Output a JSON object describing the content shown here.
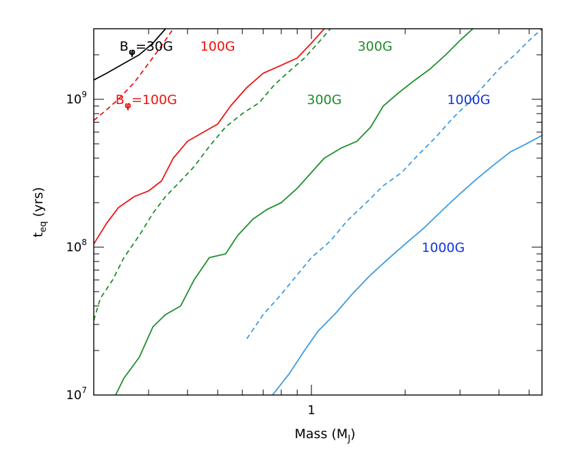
{
  "chart_data": {
    "type": "line",
    "xlabel": "Mass (M",
    "xlabel_sub": "J",
    "xlabel_end": ")",
    "ylabel": "t",
    "ylabel_sub": "eq",
    "ylabel_end": " (yrs)",
    "x_scale": "log",
    "y_scale": "log",
    "xlim": [
      0.2,
      5.5
    ],
    "ylim": [
      10000000.0,
      3000000000.0
    ],
    "x_ticks": [
      {
        "value": 1,
        "label": "1"
      }
    ],
    "y_ticks": [
      {
        "value": 10000000.0,
        "label": "10",
        "exp": "7"
      },
      {
        "value": 100000000.0,
        "label": "10",
        "exp": "8"
      },
      {
        "value": 1000000000.0,
        "label": "10",
        "exp": "9"
      }
    ],
    "grid": false,
    "series": [
      {
        "color": "#000000",
        "dash": false,
        "points": [
          [
            0.2,
            1350000000.0
          ],
          [
            0.22,
            1500000000.0
          ],
          [
            0.25,
            1750000000.0
          ],
          [
            0.28,
            2000000000.0
          ],
          [
            0.31,
            2400000000.0
          ],
          [
            0.34,
            3000000000.0
          ]
        ]
      },
      {
        "color": "#ee1111",
        "dash": true,
        "points": [
          [
            0.2,
            720000000.0
          ],
          [
            0.22,
            850000000.0
          ],
          [
            0.24,
            1000000000.0
          ],
          [
            0.27,
            1300000000.0
          ],
          [
            0.3,
            1750000000.0
          ],
          [
            0.33,
            2300000000.0
          ],
          [
            0.36,
            3000000000.0
          ]
        ]
      },
      {
        "color": "#ee1111",
        "dash": false,
        "points": [
          [
            0.2,
            105000000.0
          ],
          [
            0.22,
            145000000.0
          ],
          [
            0.24,
            185000000.0
          ],
          [
            0.27,
            220000000.0
          ],
          [
            0.3,
            240000000.0
          ],
          [
            0.33,
            280000000.0
          ],
          [
            0.36,
            400000000.0
          ],
          [
            0.4,
            520000000.0
          ],
          [
            0.45,
            600000000.0
          ],
          [
            0.5,
            680000000.0
          ],
          [
            0.55,
            900000000.0
          ],
          [
            0.62,
            1200000000.0
          ],
          [
            0.7,
            1500000000.0
          ],
          [
            0.8,
            1700000000.0
          ],
          [
            0.9,
            1900000000.0
          ],
          [
            1.0,
            2400000000.0
          ],
          [
            1.1,
            3000000000.0
          ]
        ]
      },
      {
        "color": "#1e8c2a",
        "dash": true,
        "points": [
          [
            0.2,
            32000000.0
          ],
          [
            0.21,
            45000000.0
          ],
          [
            0.23,
            60000000.0
          ],
          [
            0.25,
            85000000.0
          ],
          [
            0.28,
            120000000.0
          ],
          [
            0.31,
            170000000.0
          ],
          [
            0.34,
            220000000.0
          ],
          [
            0.38,
            280000000.0
          ],
          [
            0.42,
            350000000.0
          ],
          [
            0.47,
            480000000.0
          ],
          [
            0.53,
            650000000.0
          ],
          [
            0.6,
            800000000.0
          ],
          [
            0.68,
            950000000.0
          ],
          [
            0.76,
            1250000000.0
          ],
          [
            0.85,
            1550000000.0
          ],
          [
            0.95,
            1900000000.0
          ],
          [
            1.05,
            2400000000.0
          ],
          [
            1.15,
            3000000000.0
          ]
        ]
      },
      {
        "color": "#1e8c2a",
        "dash": false,
        "points": [
          [
            0.235,
            10000000.0
          ],
          [
            0.25,
            13000000.0
          ],
          [
            0.28,
            18000000.0
          ],
          [
            0.31,
            29000000.0
          ],
          [
            0.34,
            35000000.0
          ],
          [
            0.38,
            40000000.0
          ],
          [
            0.42,
            60000000.0
          ],
          [
            0.47,
            85000000.0
          ],
          [
            0.53,
            90000000.0
          ],
          [
            0.58,
            120000000.0
          ],
          [
            0.65,
            155000000.0
          ],
          [
            0.72,
            180000000.0
          ],
          [
            0.8,
            200000000.0
          ],
          [
            0.9,
            250000000.0
          ],
          [
            1.0,
            320000000.0
          ],
          [
            1.1,
            400000000.0
          ],
          [
            1.25,
            470000000.0
          ],
          [
            1.4,
            520000000.0
          ],
          [
            1.55,
            650000000.0
          ],
          [
            1.7,
            900000000.0
          ],
          [
            1.9,
            1100000000.0
          ],
          [
            2.1,
            1300000000.0
          ],
          [
            2.4,
            1600000000.0
          ],
          [
            2.7,
            2000000000.0
          ],
          [
            3.0,
            2500000000.0
          ],
          [
            3.3,
            3000000000.0
          ]
        ]
      },
      {
        "color": "#3a9ae0",
        "dash": true,
        "points": [
          [
            0.62,
            24000000.0
          ],
          [
            0.7,
            35000000.0
          ],
          [
            0.8,
            48000000.0
          ],
          [
            0.9,
            65000000.0
          ],
          [
            1.0,
            85000000.0
          ],
          [
            1.15,
            110000000.0
          ],
          [
            1.3,
            150000000.0
          ],
          [
            1.5,
            200000000.0
          ],
          [
            1.7,
            260000000.0
          ],
          [
            1.95,
            320000000.0
          ],
          [
            2.2,
            420000000.0
          ],
          [
            2.5,
            550000000.0
          ],
          [
            2.85,
            750000000.0
          ],
          [
            3.2,
            950000000.0
          ],
          [
            3.6,
            1250000000.0
          ],
          [
            4.0,
            1600000000.0
          ],
          [
            4.5,
            2000000000.0
          ],
          [
            5.0,
            2500000000.0
          ],
          [
            5.5,
            3000000000.0
          ]
        ]
      },
      {
        "color": "#3a9ae0",
        "dash": false,
        "points": [
          [
            0.75,
            10000000.0
          ],
          [
            0.85,
            14000000.0
          ],
          [
            0.95,
            20000000.0
          ],
          [
            1.05,
            27000000.0
          ],
          [
            1.2,
            36000000.0
          ],
          [
            1.35,
            48000000.0
          ],
          [
            1.55,
            65000000.0
          ],
          [
            1.75,
            82000000.0
          ],
          [
            2.0,
            105000000.0
          ],
          [
            2.3,
            135000000.0
          ],
          [
            2.65,
            180000000.0
          ],
          [
            3.0,
            230000000.0
          ],
          [
            3.4,
            290000000.0
          ],
          [
            3.85,
            360000000.0
          ],
          [
            4.35,
            440000000.0
          ],
          [
            4.9,
            500000000.0
          ],
          [
            5.5,
            570000000.0
          ]
        ]
      }
    ],
    "annotations": [
      {
        "text": "B",
        "sub": "φ",
        "after": "=30G",
        "color": "#000000",
        "x": 0.295,
        "y": 2300000000.0
      },
      {
        "text": "100G",
        "color": "#ee1111",
        "x": 0.5,
        "y": 2300000000.0
      },
      {
        "text": "300G",
        "color": "#1e8c2a",
        "x": 1.6,
        "y": 2300000000.0
      },
      {
        "text": "B",
        "sub": "φ",
        "after": "=100G",
        "color": "#ee1111",
        "x": 0.295,
        "y": 1000000000.0
      },
      {
        "text": "300G",
        "color": "#1e8c2a",
        "x": 1.1,
        "y": 1000000000.0
      },
      {
        "text": "1000G",
        "color": "#1133dd",
        "x": 3.2,
        "y": 1000000000.0
      },
      {
        "text": "1000G",
        "color": "#1133dd",
        "x": 2.65,
        "y": 100000000.0
      }
    ]
  }
}
